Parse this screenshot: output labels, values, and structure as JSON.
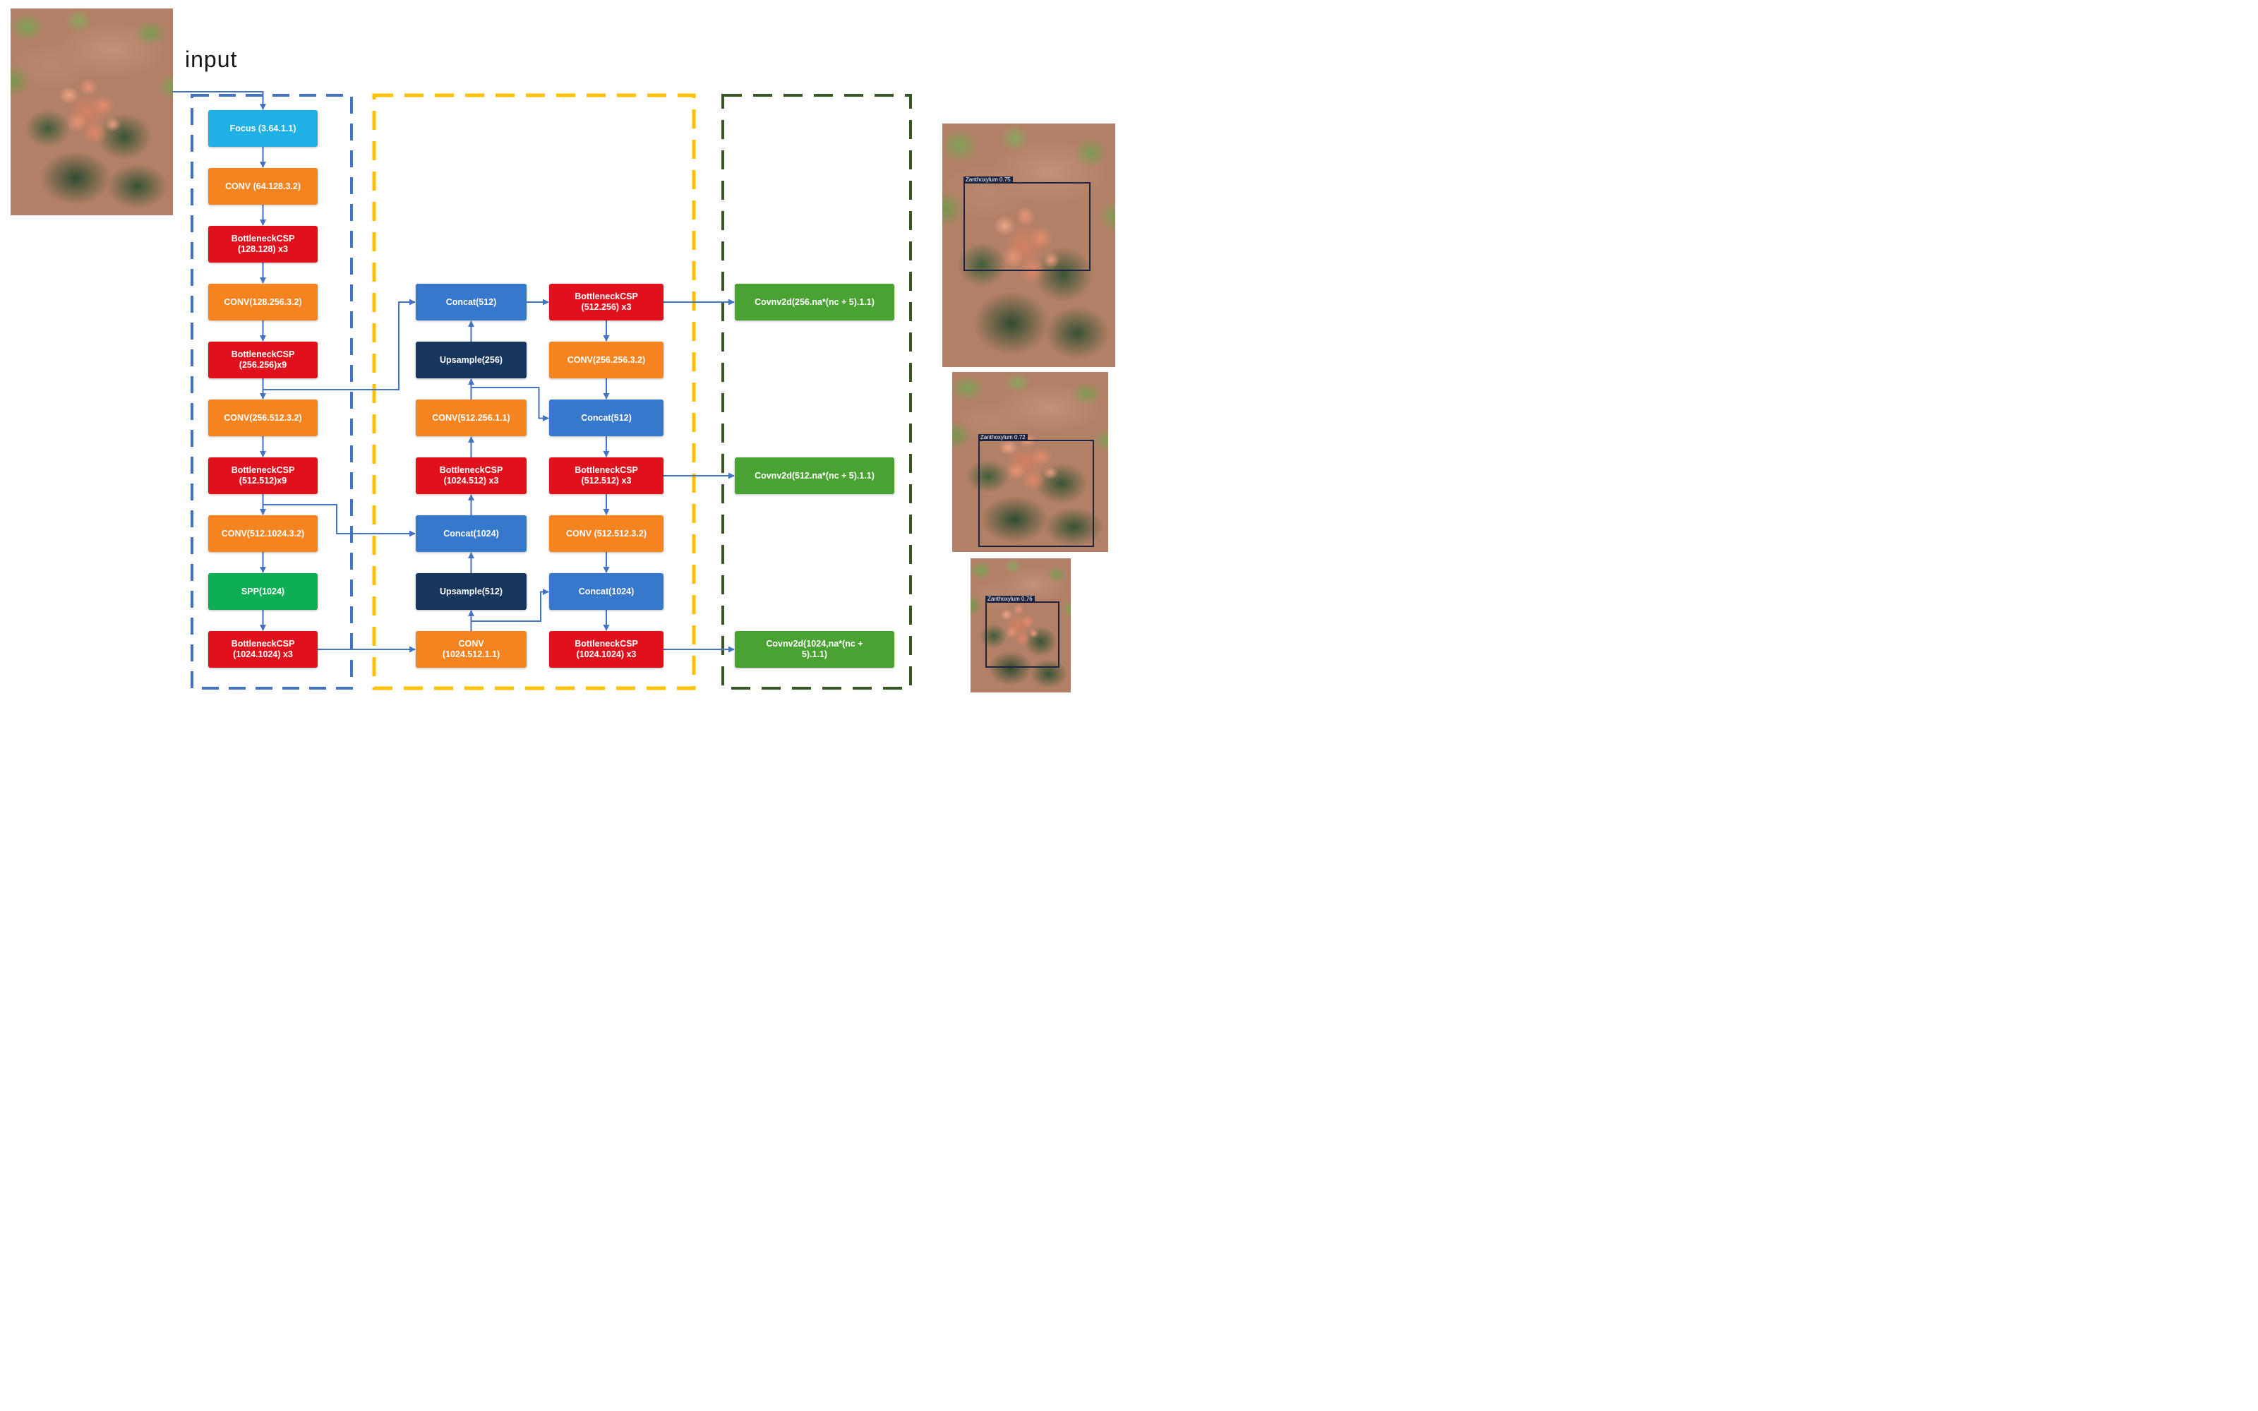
{
  "diagram": {
    "input_label": "input",
    "backbone": {
      "nodes": [
        {
          "label": "Focus (3.64.1.1)",
          "type": "focus"
        },
        {
          "label": "CONV (64.128.3.2)",
          "type": "conv"
        },
        {
          "label": "BottleneckCSP\n(128.128) x3",
          "type": "csp"
        },
        {
          "label": "CONV(128.256.3.2)",
          "type": "conv"
        },
        {
          "label": "BottleneckCSP\n(256.256)x9",
          "type": "csp"
        },
        {
          "label": "CONV(256.512.3.2)",
          "type": "conv"
        },
        {
          "label": "BottleneckCSP\n(512.512)x9",
          "type": "csp"
        },
        {
          "label": "CONV(512.1024.3.2)",
          "type": "conv"
        },
        {
          "label": "SPP(1024)",
          "type": "spp"
        },
        {
          "label": "BottleneckCSP\n(1024.1024) x3",
          "type": "csp"
        }
      ]
    },
    "neck": {
      "left_column": [
        {
          "label": "Concat(512)",
          "type": "concat"
        },
        {
          "label": "Upsample(256)",
          "type": "upsample"
        },
        {
          "label": "CONV(512.256.1.1)",
          "type": "conv"
        },
        {
          "label": "BottleneckCSP\n(1024.512) x3",
          "type": "csp"
        },
        {
          "label": "Concat(1024)",
          "type": "concat"
        },
        {
          "label": "Upsample(512)",
          "type": "upsample"
        },
        {
          "label": "CONV\n(1024.512.1.1)",
          "type": "conv"
        }
      ],
      "right_column": [
        {
          "label": "BottleneckCSP\n(512.256) x3",
          "type": "csp"
        },
        {
          "label": "CONV(256.256.3.2)",
          "type": "conv"
        },
        {
          "label": "Concat(512)",
          "type": "concat"
        },
        {
          "label": "BottleneckCSP\n(512.512) x3",
          "type": "csp"
        },
        {
          "label": "CONV (512.512.3.2)",
          "type": "conv"
        },
        {
          "label": "Concat(1024)",
          "type": "concat"
        },
        {
          "label": "BottleneckCSP\n(1024.1024) x3",
          "type": "csp"
        }
      ]
    },
    "head": {
      "nodes": [
        {
          "label": "Covnv2d(256.na*(nc + 5).1.1)",
          "type": "head"
        },
        {
          "label": "Covnv2d(512.na*(nc + 5).1.1)",
          "type": "head"
        },
        {
          "label": "Covnv2d(1024,na*(nc +\n5).1.1)",
          "type": "head"
        }
      ]
    }
  },
  "photos": {
    "input": {
      "description": "Zanthoxylum plant with red berries in field"
    },
    "outputs": [
      {
        "detection_label": "Zanthoxylum 0.75"
      },
      {
        "detection_label": "Zanthoxylum 0.72"
      },
      {
        "detection_label": "Zanthoxylum 0.76"
      }
    ]
  },
  "colors": {
    "focus": "#1FB1E6",
    "conv": "#F5831F",
    "csp": "#E0111C",
    "spp": "#0EAE54",
    "concat": "#3678CB",
    "upsample": "#17375E",
    "head": "#4AA233",
    "arrow": "#4472C4",
    "backbone_border": "#4472C4",
    "neck_border": "#FFC000",
    "head_border": "#375623"
  }
}
